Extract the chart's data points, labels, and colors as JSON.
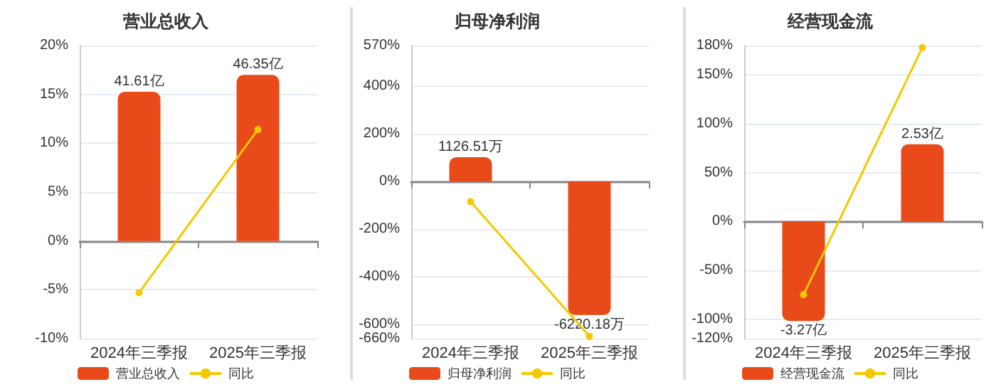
{
  "chart_data": [
    {
      "type": "bar",
      "title": "营业总收入",
      "categories": [
        "2024年三季报",
        "2025年三季报"
      ],
      "ylim": [
        -10,
        20
      ],
      "yticks": [
        {
          "value": -10,
          "label": "-10%"
        },
        {
          "value": -5,
          "label": "-5%"
        },
        {
          "value": 0,
          "label": "0%"
        },
        {
          "value": 5,
          "label": "5%"
        },
        {
          "value": 10,
          "label": "10%"
        },
        {
          "value": 15,
          "label": "15%"
        },
        {
          "value": 20,
          "label": "20%"
        }
      ],
      "grid": "y",
      "legend": "bottom",
      "marker": "circle",
      "series": [
        {
          "name": "营业总收入",
          "axis": "y2",
          "color": "#e84a1a",
          "values": [
            41.61,
            46.35
          ],
          "value_labels": [
            "41.61亿",
            "46.35亿"
          ]
        },
        {
          "name": "同比",
          "type": "line",
          "color": "#f5c800",
          "values": [
            -5.3,
            11.4
          ]
        }
      ]
    },
    {
      "type": "bar",
      "title": "归母净利润",
      "categories": [
        "2024年三季报",
        "2025年三季报"
      ],
      "ylim": [
        -660,
        570
      ],
      "yticks": [
        {
          "value": -660,
          "label": "-660%"
        },
        {
          "value": -600,
          "label": "-600%"
        },
        {
          "value": -400,
          "label": "-400%"
        },
        {
          "value": -200,
          "label": "-200%"
        },
        {
          "value": 0,
          "label": "0%"
        },
        {
          "value": 200,
          "label": "200%"
        },
        {
          "value": 400,
          "label": "400%"
        },
        {
          "value": 570,
          "label": "570%"
        }
      ],
      "grid": "y",
      "legend": "bottom",
      "marker": "circle",
      "series": [
        {
          "name": "归母净利润",
          "axis": "y2",
          "color": "#e84a1a",
          "values": [
            1126.51,
            -6220.18
          ],
          "value_labels": [
            "1126.51万",
            "-6220.18万"
          ]
        },
        {
          "name": "同比",
          "type": "line",
          "color": "#f5c800",
          "values": [
            -85,
            -650
          ]
        }
      ]
    },
    {
      "type": "bar",
      "title": "经营现金流",
      "categories": [
        "2024年三季报",
        "2025年三季报"
      ],
      "ylim": [
        -120,
        180
      ],
      "yticks": [
        {
          "value": -120,
          "label": "-120%"
        },
        {
          "value": -100,
          "label": "-100%"
        },
        {
          "value": -50,
          "label": "-50%"
        },
        {
          "value": 0,
          "label": "0%"
        },
        {
          "value": 50,
          "label": "50%"
        },
        {
          "value": 100,
          "label": "100%"
        },
        {
          "value": 150,
          "label": "150%"
        },
        {
          "value": 180,
          "label": "180%"
        }
      ],
      "grid": "y",
      "legend": "bottom",
      "marker": "circle",
      "series": [
        {
          "name": "经营现金流",
          "axis": "y2",
          "color": "#e84a1a",
          "values": [
            -3.27,
            2.53
          ],
          "value_labels": [
            "-3.27亿",
            "2.53亿"
          ]
        },
        {
          "name": "同比",
          "type": "line",
          "color": "#f5c800",
          "values": [
            -75,
            178
          ]
        }
      ]
    }
  ]
}
